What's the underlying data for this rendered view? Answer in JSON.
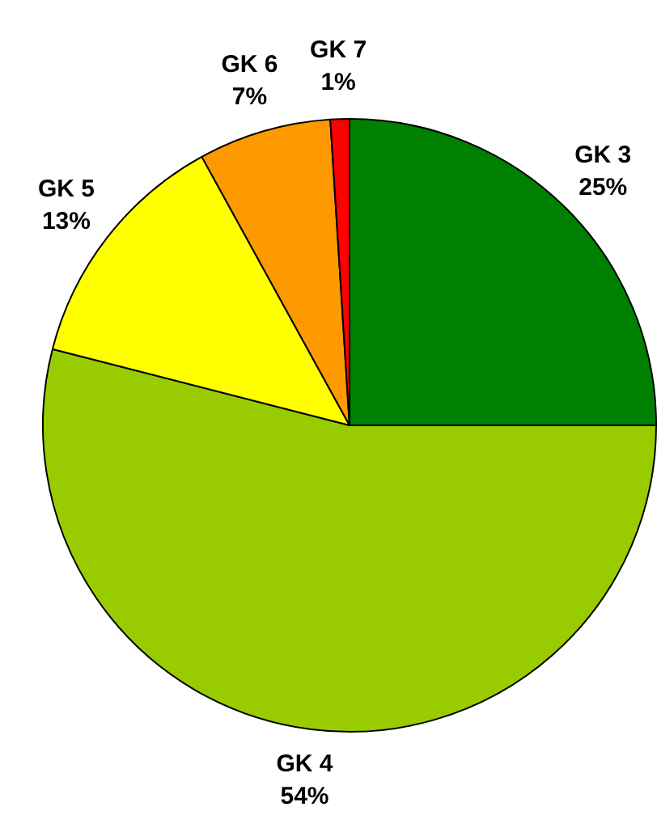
{
  "chart_data": {
    "type": "pie",
    "categories": [
      "GK 3",
      "GK 4",
      "GK 5",
      "GK 6",
      "GK 7"
    ],
    "values": [
      25,
      54,
      13,
      7,
      1
    ],
    "value_labels": [
      "25%",
      "54%",
      "13%",
      "7%",
      "1%"
    ],
    "colors": [
      "#008000",
      "#99cc00",
      "#ffff00",
      "#ff9900",
      "#ff0000"
    ],
    "legend": false
  }
}
